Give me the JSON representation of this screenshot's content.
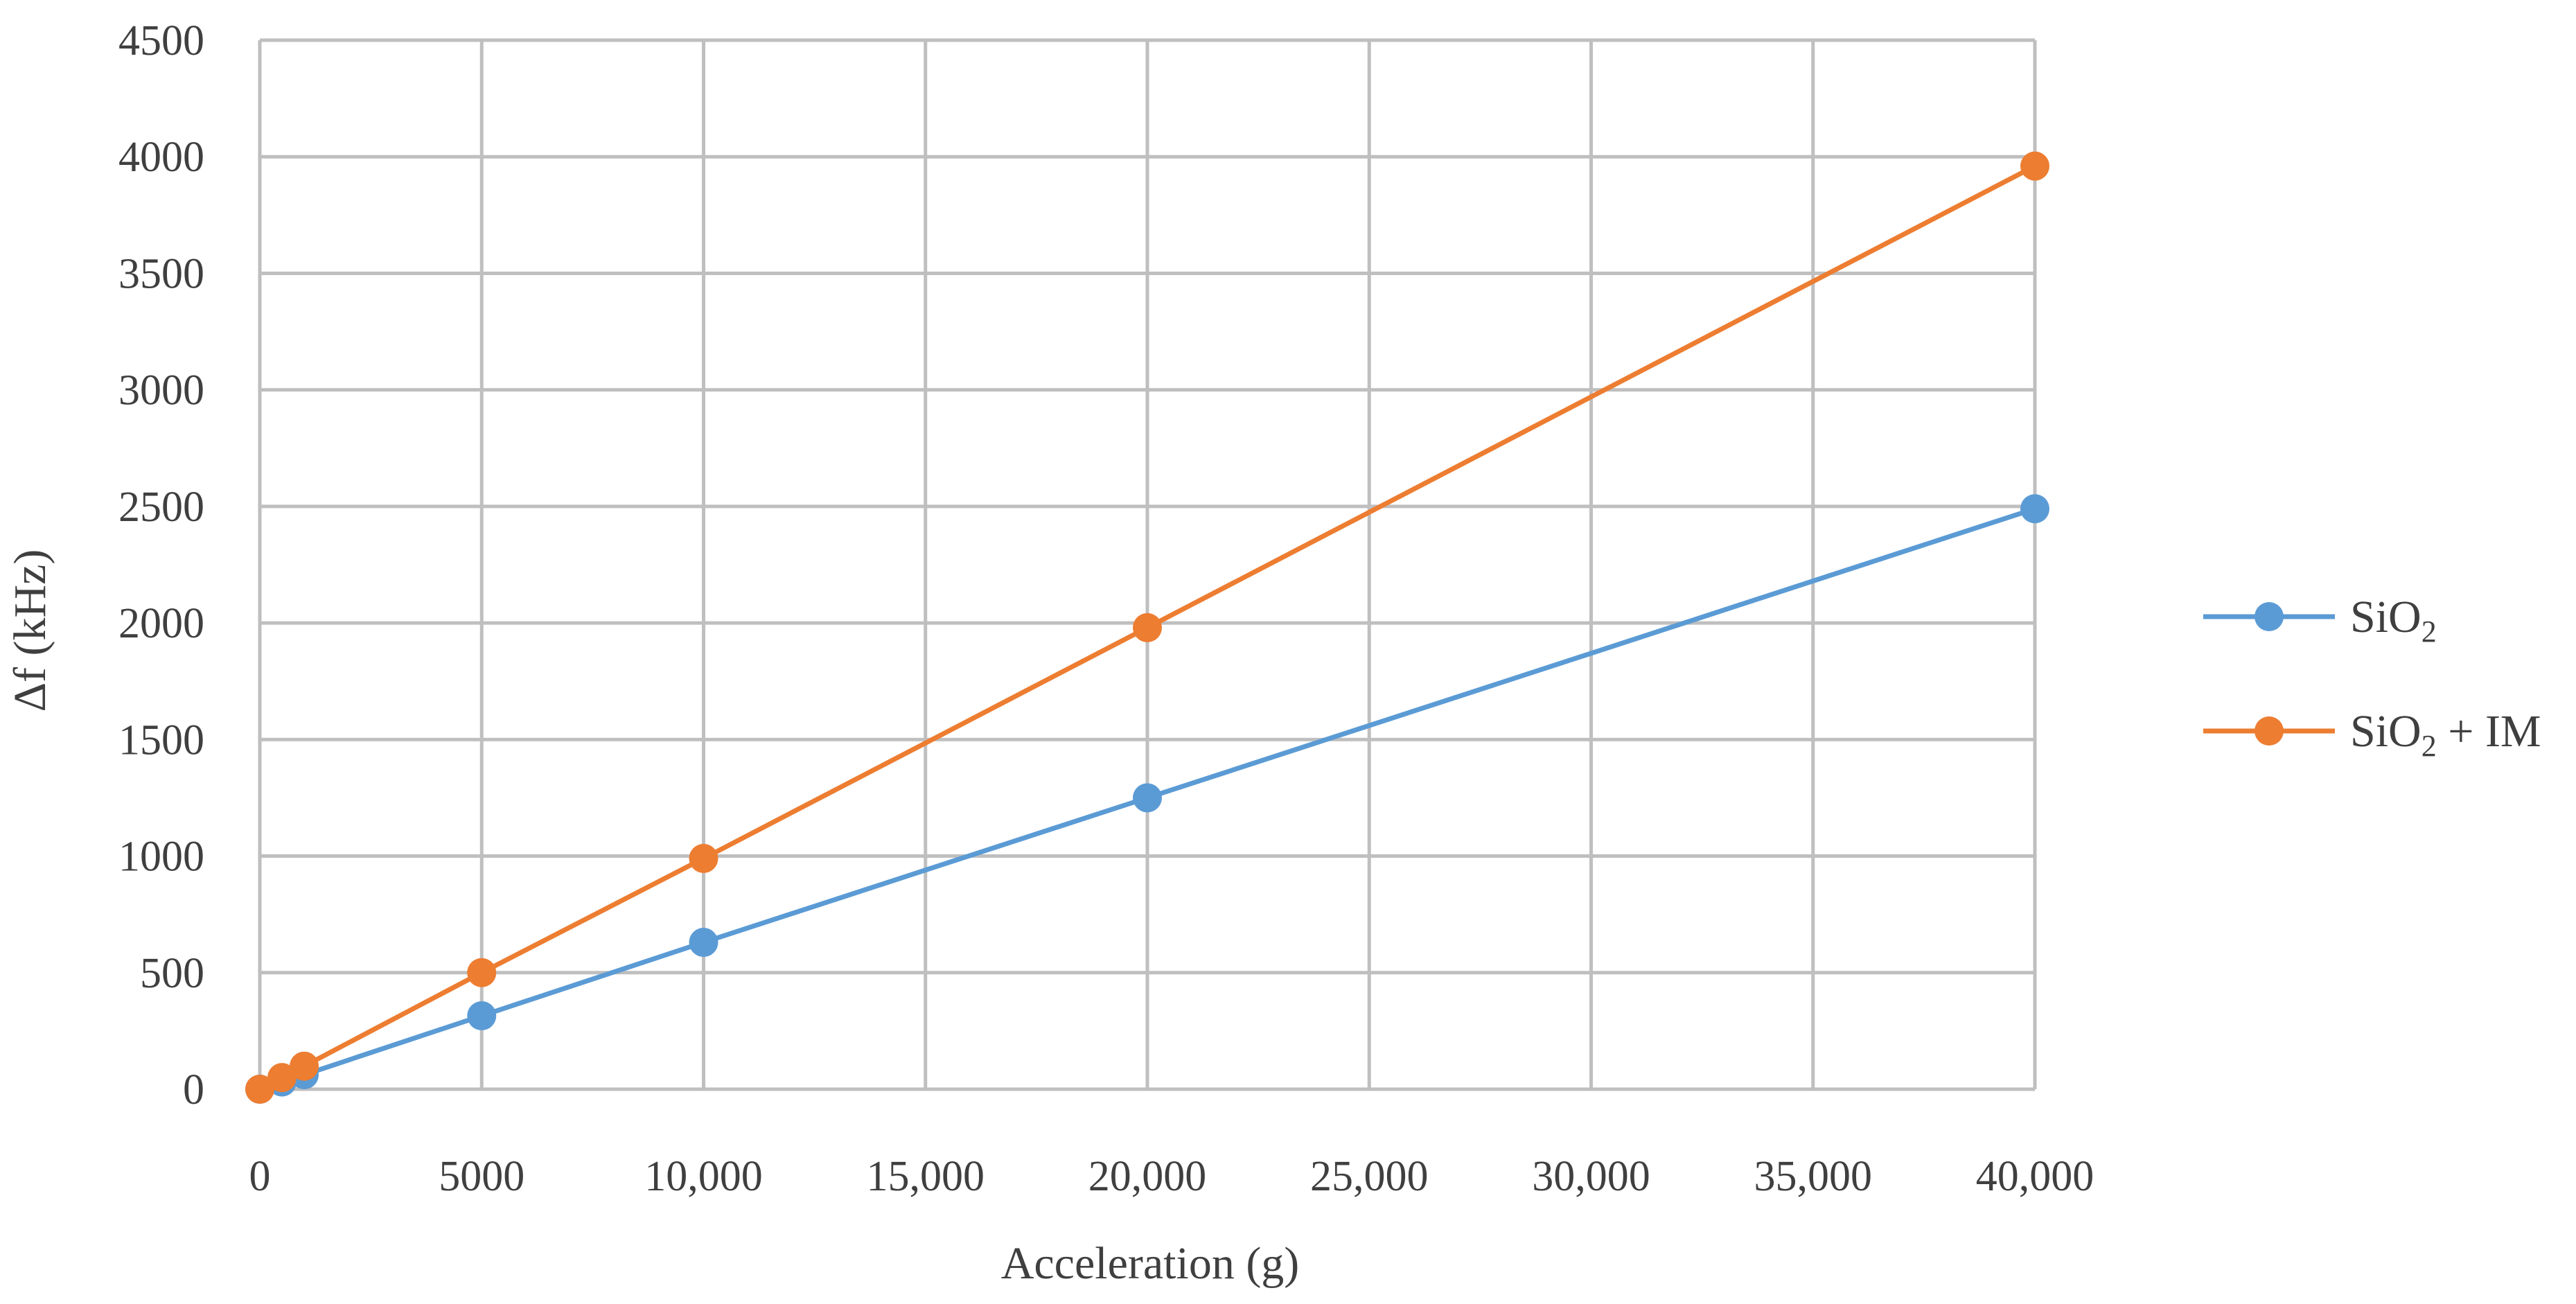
{
  "chart_data": {
    "type": "line",
    "title": "",
    "xlabel": "Acceleration (g)",
    "ylabel": "Δf (kHz)",
    "xlim": [
      0,
      40000
    ],
    "ylim": [
      0,
      4500
    ],
    "x_ticks": [
      0,
      5000,
      10000,
      15000,
      20000,
      25000,
      30000,
      35000,
      40000
    ],
    "x_tick_labels": [
      "0",
      "5000",
      "10,000",
      "15,000",
      "20,000",
      "25,000",
      "30,000",
      "35,000",
      "40,000"
    ],
    "y_ticks": [
      0,
      500,
      1000,
      1500,
      2000,
      2500,
      3000,
      3500,
      4000,
      4500
    ],
    "y_tick_labels": [
      "0",
      "500",
      "1000",
      "1500",
      "2000",
      "2500",
      "3000",
      "3500",
      "4000",
      "4500"
    ],
    "grid": true,
    "legend_position": "right",
    "series": [
      {
        "name": "SiO2",
        "label_main": "SiO",
        "label_sub": "2",
        "label_suffix": "",
        "color": "#5b9bd5",
        "x": [
          0,
          500,
          1000,
          5000,
          10000,
          20000,
          40000
        ],
        "y": [
          0,
          31,
          62,
          315,
          630,
          1250,
          2490
        ]
      },
      {
        "name": "SiO2 + IM",
        "label_main": "SiO",
        "label_sub": "2",
        "label_suffix": " + IM",
        "color": "#ed7d31",
        "x": [
          0,
          500,
          1000,
          5000,
          10000,
          20000,
          40000
        ],
        "y": [
          0,
          50,
          99,
          500,
          990,
          1980,
          3960
        ]
      }
    ]
  }
}
